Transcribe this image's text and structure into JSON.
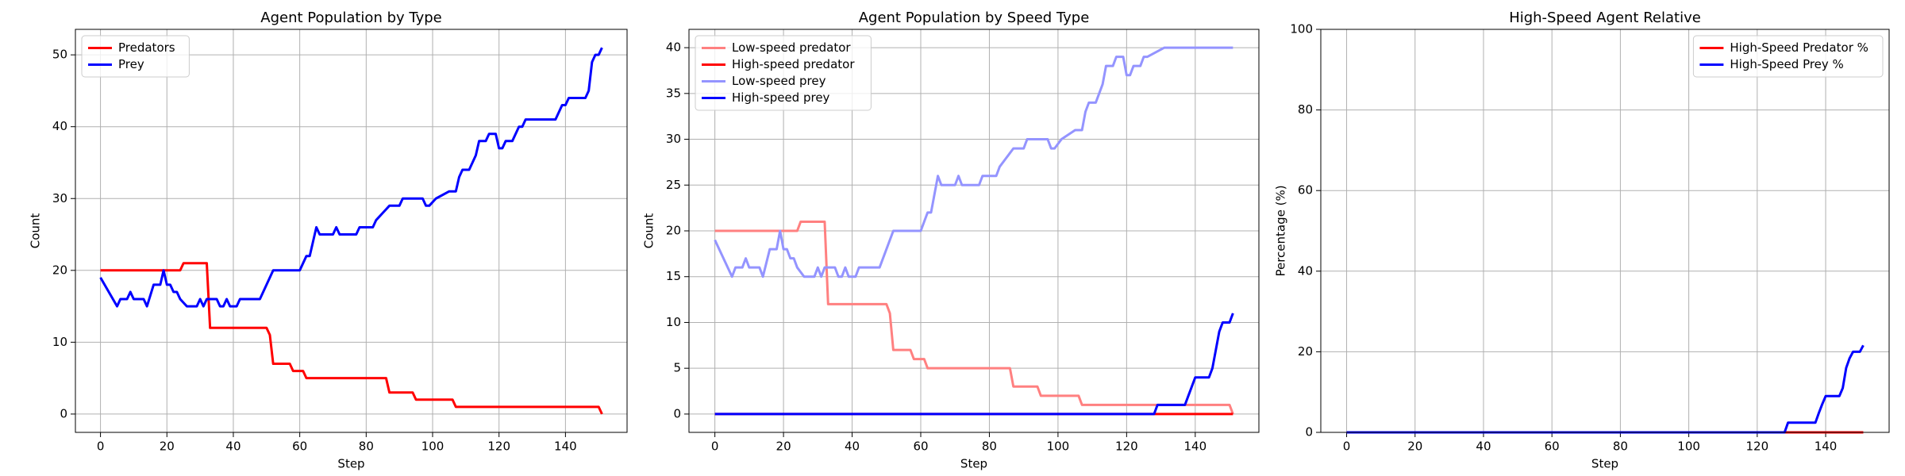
{
  "chart_data": [
    {
      "type": "line",
      "title": "Agent Population by Type",
      "xlabel": "Step",
      "ylabel": "Count",
      "xlim": [
        -7.55,
        158.55
      ],
      "xticks": [
        0,
        20,
        40,
        60,
        80,
        100,
        120,
        140
      ],
      "ylim": [
        -2.55,
        53.55
      ],
      "yticks": [
        0,
        10,
        20,
        30,
        40,
        50
      ],
      "grid": true,
      "legend": "upper left",
      "series": [
        {
          "name": "Predators",
          "color": "#ff0000",
          "x": [
            0,
            24,
            25,
            32,
            33,
            50,
            51,
            52,
            57,
            58,
            61,
            62,
            86,
            87,
            94,
            95,
            106,
            107,
            150,
            151
          ],
          "values": [
            20,
            20,
            21,
            21,
            12,
            12,
            11,
            7,
            7,
            6,
            6,
            5,
            5,
            3,
            3,
            2,
            2,
            1,
            1,
            0
          ]
        },
        {
          "name": "Prey",
          "color": "#0000ff",
          "x": [
            0,
            5,
            6,
            8,
            9,
            10,
            13,
            14,
            16,
            18,
            19,
            20,
            21,
            22,
            23,
            24,
            26,
            29,
            30,
            31,
            32,
            35,
            36,
            37,
            38,
            39,
            41,
            42,
            48,
            52,
            60,
            62,
            63,
            64,
            65,
            66,
            70,
            71,
            72,
            77,
            78,
            82,
            83,
            85,
            87,
            90,
            91,
            97,
            98,
            99,
            101,
            105,
            107,
            108,
            109,
            111,
            112,
            113,
            114,
            116,
            117,
            119,
            120,
            121,
            122,
            124,
            125,
            126,
            127,
            128,
            137,
            139,
            140,
            141,
            146,
            147,
            148,
            149,
            150,
            151
          ],
          "values": [
            19,
            15,
            16,
            16,
            17,
            16,
            16,
            15,
            18,
            18,
            20,
            18,
            18,
            17,
            17,
            16,
            15,
            15,
            16,
            15,
            16,
            16,
            15,
            15,
            16,
            15,
            15,
            16,
            16,
            20,
            20,
            22,
            22,
            24,
            26,
            25,
            25,
            26,
            25,
            25,
            26,
            26,
            27,
            28,
            29,
            29,
            30,
            30,
            29,
            29,
            30,
            31,
            31,
            33,
            34,
            34,
            35,
            36,
            38,
            38,
            39,
            39,
            37,
            37,
            38,
            38,
            39,
            40,
            40,
            41,
            41,
            43,
            43,
            44,
            44,
            45,
            49,
            50,
            50,
            51
          ]
        }
      ]
    },
    {
      "type": "line",
      "title": "Agent Population by Speed Type",
      "xlabel": "Step",
      "ylabel": "Count",
      "xlim": [
        -7.55,
        158.55
      ],
      "xticks": [
        0,
        20,
        40,
        60,
        80,
        100,
        120,
        140
      ],
      "ylim": [
        -2,
        42
      ],
      "yticks": [
        0,
        5,
        10,
        15,
        20,
        25,
        30,
        35,
        40
      ],
      "grid": true,
      "legend": "upper left",
      "series": [
        {
          "name": "Low-speed predator",
          "color": "#ff8080",
          "x": [
            0,
            24,
            25,
            32,
            33,
            50,
            51,
            52,
            57,
            58,
            61,
            62,
            86,
            87,
            94,
            95,
            106,
            107,
            150,
            151
          ],
          "values": [
            20,
            20,
            21,
            21,
            12,
            12,
            11,
            7,
            7,
            6,
            6,
            5,
            5,
            3,
            3,
            2,
            2,
            1,
            1,
            0
          ]
        },
        {
          "name": "High-speed predator",
          "color": "#ff0000",
          "x": [
            0,
            151
          ],
          "values": [
            0,
            0
          ]
        },
        {
          "name": "Low-speed prey",
          "color": "#9494ff",
          "x": [
            0,
            5,
            6,
            8,
            9,
            10,
            13,
            14,
            16,
            18,
            19,
            20,
            21,
            22,
            23,
            24,
            26,
            29,
            30,
            31,
            32,
            35,
            36,
            37,
            38,
            39,
            41,
            42,
            48,
            52,
            60,
            62,
            63,
            64,
            65,
            66,
            70,
            71,
            72,
            77,
            78,
            82,
            83,
            85,
            87,
            90,
            91,
            97,
            98,
            99,
            101,
            105,
            107,
            108,
            109,
            111,
            112,
            113,
            114,
            116,
            117,
            119,
            120,
            121,
            122,
            124,
            125,
            126,
            131,
            151
          ],
          "values": [
            19,
            15,
            16,
            16,
            17,
            16,
            16,
            15,
            18,
            18,
            20,
            18,
            18,
            17,
            17,
            16,
            15,
            15,
            16,
            15,
            16,
            16,
            15,
            15,
            16,
            15,
            15,
            16,
            16,
            20,
            20,
            22,
            22,
            24,
            26,
            25,
            25,
            26,
            25,
            25,
            26,
            26,
            27,
            28,
            29,
            29,
            30,
            30,
            29,
            29,
            30,
            31,
            31,
            33,
            34,
            34,
            35,
            36,
            38,
            38,
            39,
            39,
            37,
            37,
            38,
            38,
            39,
            39,
            40,
            40
          ]
        },
        {
          "name": "High-speed prey",
          "color": "#0000ff",
          "x": [
            0,
            128,
            129,
            137,
            138,
            139,
            140,
            144,
            145,
            146,
            147,
            148,
            149,
            150,
            151
          ],
          "values": [
            0,
            0,
            1,
            1,
            2,
            3,
            4,
            4,
            5,
            7,
            9,
            10,
            10,
            10,
            11
          ]
        }
      ]
    },
    {
      "type": "line",
      "title": "High-Speed Agent Relative",
      "xlabel": "Step",
      "ylabel": "Percentage (%)",
      "xlim": [
        -7.55,
        158.55
      ],
      "xticks": [
        0,
        20,
        40,
        60,
        80,
        100,
        120,
        140
      ],
      "ylim": [
        0,
        100
      ],
      "yticks": [
        0,
        20,
        40,
        60,
        80,
        100
      ],
      "grid": true,
      "legend": "upper right",
      "series": [
        {
          "name": "High-Speed Predator %",
          "color": "#ff0000",
          "x": [
            0,
            151
          ],
          "values": [
            0,
            0
          ]
        },
        {
          "name": "High-Speed Prey %",
          "color": "#0000ff",
          "x": [
            0,
            128,
            129,
            137,
            138,
            139,
            140,
            144,
            145,
            146,
            147,
            148,
            149,
            150,
            151
          ],
          "values": [
            0,
            0,
            2.4,
            2.4,
            4.8,
            7,
            9,
            9,
            11,
            16,
            18.4,
            20,
            20,
            20,
            21.6
          ]
        }
      ]
    }
  ]
}
